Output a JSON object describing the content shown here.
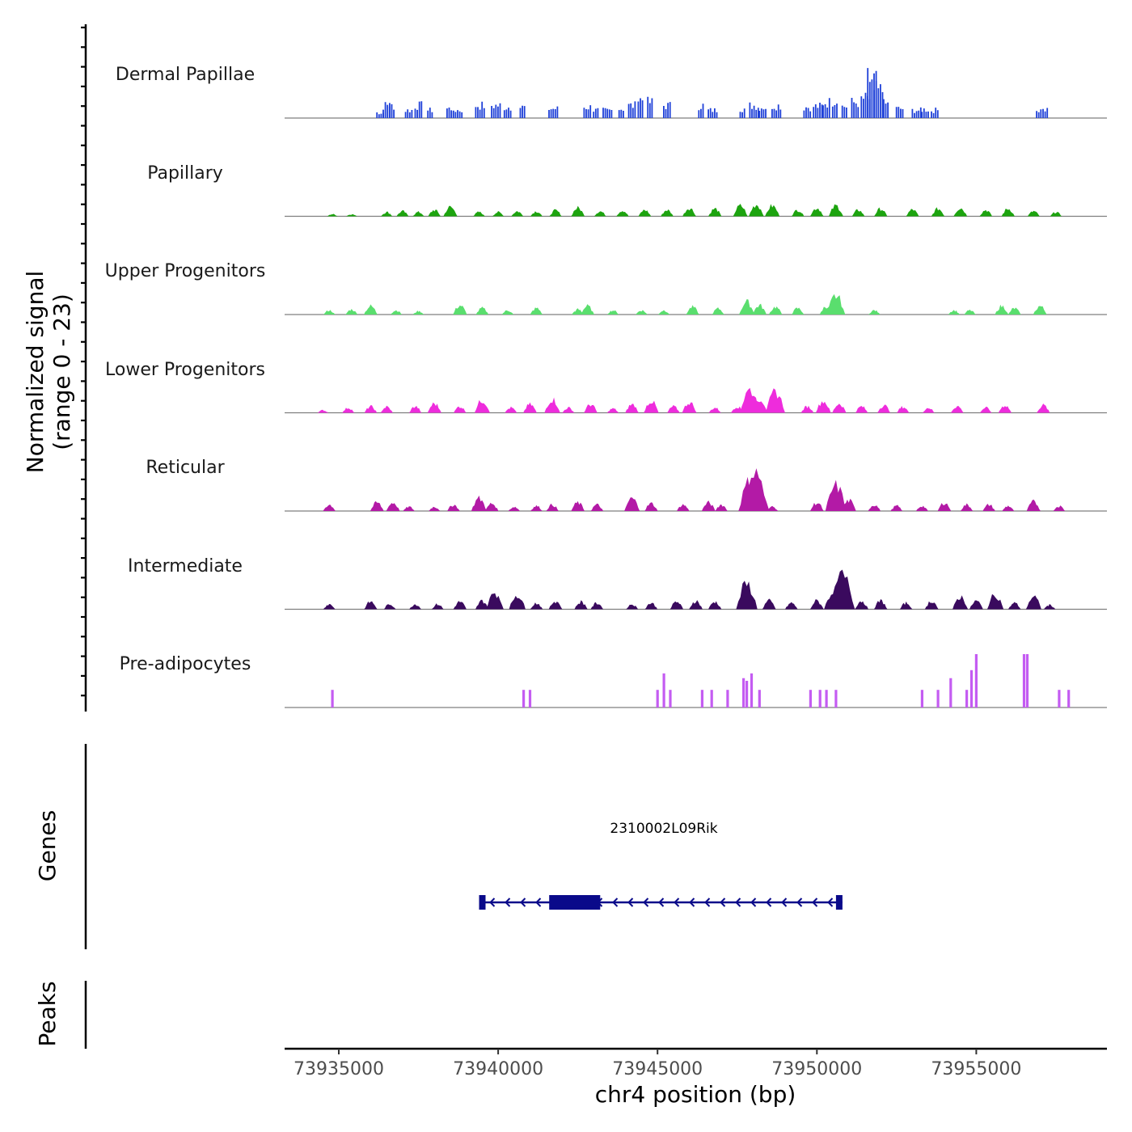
{
  "chart_data": {
    "type": "area",
    "title": "",
    "xlabel": "chr4 position (bp)",
    "ylabel_line1": "Normalized signal",
    "ylabel_line2": "(range 0 - 23)",
    "ylim": [
      0,
      23
    ],
    "xlim": [
      73933300,
      73959100
    ],
    "x_ticks": [
      73935000,
      73940000,
      73945000,
      73950000,
      73955000
    ],
    "x_tick_labels": [
      "73935000",
      "73940000",
      "73945000",
      "73950000",
      "73955000"
    ],
    "genes_label": "Genes",
    "peaks_label": "Peaks",
    "series": [
      {
        "name": "Dermal Papillae",
        "color": "#1e40d8",
        "style": "bars",
        "peaks": [
          [
            73936300,
            0.14
          ],
          [
            73936500,
            0.32
          ],
          [
            73936700,
            0.32
          ],
          [
            73937200,
            0.2
          ],
          [
            73937500,
            0.32
          ],
          [
            73937900,
            0.2
          ],
          [
            73938500,
            0.24
          ],
          [
            73938700,
            0.2
          ],
          [
            73939400,
            0.32
          ],
          [
            73939900,
            0.32
          ],
          [
            73940300,
            0.28
          ],
          [
            73940800,
            0.28
          ],
          [
            73941700,
            0.24
          ],
          [
            73942800,
            0.28
          ],
          [
            73943100,
            0.2
          ],
          [
            73943400,
            0.2
          ],
          [
            73943900,
            0.24
          ],
          [
            73944200,
            0.32
          ],
          [
            73944500,
            0.48
          ],
          [
            73944800,
            0.4
          ],
          [
            73945300,
            0.32
          ],
          [
            73946400,
            0.32
          ],
          [
            73946700,
            0.2
          ],
          [
            73947700,
            0.24
          ],
          [
            73948000,
            0.32
          ],
          [
            73948300,
            0.28
          ],
          [
            73948700,
            0.32
          ],
          [
            73949700,
            0.28
          ],
          [
            73950000,
            0.3
          ],
          [
            73950300,
            0.4
          ],
          [
            73950600,
            0.44
          ],
          [
            73950900,
            0.3
          ],
          [
            73951200,
            0.4
          ],
          [
            73951500,
            0.5
          ],
          [
            73951700,
            1.0
          ],
          [
            73951900,
            0.7
          ],
          [
            73952200,
            0.36
          ],
          [
            73952600,
            0.24
          ],
          [
            73953100,
            0.2
          ],
          [
            73953400,
            0.22
          ],
          [
            73953700,
            0.2
          ],
          [
            73957000,
            0.2
          ],
          [
            73957200,
            0.2
          ]
        ]
      },
      {
        "name": "Papillary",
        "color": "#1da40f",
        "style": "area",
        "peaks": [
          [
            73934800,
            0.05
          ],
          [
            73935400,
            0.05
          ],
          [
            73936500,
            0.1
          ],
          [
            73937000,
            0.12
          ],
          [
            73937500,
            0.1
          ],
          [
            73938000,
            0.15
          ],
          [
            73938500,
            0.22
          ],
          [
            73939400,
            0.1
          ],
          [
            73940000,
            0.1
          ],
          [
            73940600,
            0.12
          ],
          [
            73941200,
            0.12
          ],
          [
            73941800,
            0.14
          ],
          [
            73942500,
            0.2
          ],
          [
            73943200,
            0.12
          ],
          [
            73943900,
            0.14
          ],
          [
            73944600,
            0.15
          ],
          [
            73945300,
            0.15
          ],
          [
            73946000,
            0.2
          ],
          [
            73946800,
            0.18
          ],
          [
            73947600,
            0.25
          ],
          [
            73948100,
            0.28
          ],
          [
            73948600,
            0.25
          ],
          [
            73949400,
            0.15
          ],
          [
            73950000,
            0.2
          ],
          [
            73950600,
            0.25
          ],
          [
            73951300,
            0.15
          ],
          [
            73952000,
            0.18
          ],
          [
            73953000,
            0.16
          ],
          [
            73953800,
            0.18
          ],
          [
            73954500,
            0.2
          ],
          [
            73955300,
            0.15
          ],
          [
            73956000,
            0.18
          ],
          [
            73956800,
            0.12
          ],
          [
            73957500,
            0.1
          ]
        ]
      },
      {
        "name": "Upper Progenitors",
        "color": "#5ade6e",
        "style": "area",
        "peaks": [
          [
            73934700,
            0.1
          ],
          [
            73935400,
            0.12
          ],
          [
            73936000,
            0.2
          ],
          [
            73936800,
            0.1
          ],
          [
            73937500,
            0.08
          ],
          [
            73938800,
            0.22
          ],
          [
            73939500,
            0.15
          ],
          [
            73940300,
            0.1
          ],
          [
            73941200,
            0.15
          ],
          [
            73942500,
            0.12
          ],
          [
            73942800,
            0.2
          ],
          [
            73943600,
            0.1
          ],
          [
            73944500,
            0.1
          ],
          [
            73945200,
            0.1
          ],
          [
            73946100,
            0.18
          ],
          [
            73946900,
            0.14
          ],
          [
            73947800,
            0.3
          ],
          [
            73948200,
            0.22
          ],
          [
            73948700,
            0.18
          ],
          [
            73949400,
            0.15
          ],
          [
            73950300,
            0.2
          ],
          [
            73950600,
            0.45
          ],
          [
            73951800,
            0.1
          ],
          [
            73954300,
            0.1
          ],
          [
            73954800,
            0.1
          ],
          [
            73955800,
            0.2
          ],
          [
            73956200,
            0.15
          ],
          [
            73957000,
            0.2
          ]
        ]
      },
      {
        "name": "Lower Progenitors",
        "color": "#ee2cdc",
        "style": "area",
        "peaks": [
          [
            73934500,
            0.06
          ],
          [
            73935300,
            0.12
          ],
          [
            73936000,
            0.15
          ],
          [
            73936500,
            0.14
          ],
          [
            73937400,
            0.15
          ],
          [
            73938000,
            0.22
          ],
          [
            73938800,
            0.15
          ],
          [
            73939500,
            0.3
          ],
          [
            73940400,
            0.12
          ],
          [
            73941000,
            0.2
          ],
          [
            73941700,
            0.32
          ],
          [
            73942200,
            0.12
          ],
          [
            73942900,
            0.2
          ],
          [
            73943600,
            0.1
          ],
          [
            73944200,
            0.2
          ],
          [
            73944800,
            0.28
          ],
          [
            73945500,
            0.15
          ],
          [
            73946000,
            0.25
          ],
          [
            73946800,
            0.12
          ],
          [
            73947500,
            0.15
          ],
          [
            73947900,
            0.55
          ],
          [
            73948200,
            0.35
          ],
          [
            73948700,
            0.5
          ],
          [
            73949700,
            0.15
          ],
          [
            73950200,
            0.28
          ],
          [
            73950700,
            0.22
          ],
          [
            73951400,
            0.15
          ],
          [
            73952100,
            0.18
          ],
          [
            73952700,
            0.14
          ],
          [
            73953500,
            0.12
          ],
          [
            73954400,
            0.16
          ],
          [
            73955300,
            0.12
          ],
          [
            73955900,
            0.18
          ],
          [
            73957100,
            0.18
          ]
        ]
      },
      {
        "name": "Reticular",
        "color": "#b31aa6",
        "style": "area",
        "peaks": [
          [
            73934700,
            0.15
          ],
          [
            73936200,
            0.2
          ],
          [
            73936700,
            0.2
          ],
          [
            73937200,
            0.1
          ],
          [
            73938000,
            0.1
          ],
          [
            73938600,
            0.15
          ],
          [
            73939400,
            0.3
          ],
          [
            73939800,
            0.18
          ],
          [
            73940500,
            0.1
          ],
          [
            73941200,
            0.12
          ],
          [
            73941700,
            0.15
          ],
          [
            73942500,
            0.2
          ],
          [
            73943100,
            0.15
          ],
          [
            73944200,
            0.3
          ],
          [
            73944800,
            0.18
          ],
          [
            73945800,
            0.15
          ],
          [
            73946600,
            0.2
          ],
          [
            73947000,
            0.15
          ],
          [
            73947900,
            0.7
          ],
          [
            73948100,
            0.85
          ],
          [
            73948600,
            0.1
          ],
          [
            73950000,
            0.2
          ],
          [
            73950600,
            0.6
          ],
          [
            73951000,
            0.25
          ],
          [
            73951800,
            0.15
          ],
          [
            73952500,
            0.12
          ],
          [
            73953300,
            0.12
          ],
          [
            73954000,
            0.2
          ],
          [
            73954700,
            0.15
          ],
          [
            73955400,
            0.15
          ],
          [
            73956000,
            0.12
          ],
          [
            73956800,
            0.22
          ],
          [
            73957600,
            0.12
          ]
        ]
      },
      {
        "name": "Intermediate",
        "color": "#3a0a5e",
        "style": "area",
        "peaks": [
          [
            73934700,
            0.12
          ],
          [
            73936000,
            0.18
          ],
          [
            73936600,
            0.12
          ],
          [
            73937400,
            0.12
          ],
          [
            73938100,
            0.12
          ],
          [
            73938800,
            0.18
          ],
          [
            73939500,
            0.2
          ],
          [
            73939900,
            0.4
          ],
          [
            73940600,
            0.35
          ],
          [
            73941200,
            0.15
          ],
          [
            73941800,
            0.2
          ],
          [
            73942600,
            0.18
          ],
          [
            73943100,
            0.15
          ],
          [
            73944200,
            0.12
          ],
          [
            73944800,
            0.15
          ],
          [
            73945600,
            0.18
          ],
          [
            73946200,
            0.2
          ],
          [
            73946800,
            0.18
          ],
          [
            73947800,
            0.6
          ],
          [
            73948500,
            0.2
          ],
          [
            73949200,
            0.15
          ],
          [
            73950000,
            0.2
          ],
          [
            73950500,
            0.4
          ],
          [
            73950800,
            0.8
          ],
          [
            73951400,
            0.2
          ],
          [
            73952000,
            0.2
          ],
          [
            73952800,
            0.15
          ],
          [
            73953600,
            0.2
          ],
          [
            73954500,
            0.3
          ],
          [
            73955000,
            0.2
          ],
          [
            73955600,
            0.35
          ],
          [
            73956200,
            0.15
          ],
          [
            73956800,
            0.3
          ],
          [
            73957300,
            0.1
          ]
        ]
      },
      {
        "name": "Pre-adipocytes",
        "color": "#c45cf2",
        "style": "spikes",
        "peaks": [
          [
            73934800,
            0.33
          ],
          [
            73940800,
            0.33
          ],
          [
            73941000,
            0.33
          ],
          [
            73945000,
            0.33
          ],
          [
            73945200,
            0.64
          ],
          [
            73945400,
            0.33
          ],
          [
            73946400,
            0.33
          ],
          [
            73946700,
            0.33
          ],
          [
            73947200,
            0.33
          ],
          [
            73947700,
            0.55
          ],
          [
            73947800,
            0.5
          ],
          [
            73947950,
            0.64
          ],
          [
            73948200,
            0.33
          ],
          [
            73949800,
            0.33
          ],
          [
            73950100,
            0.33
          ],
          [
            73950300,
            0.33
          ],
          [
            73950600,
            0.33
          ],
          [
            73953300,
            0.33
          ],
          [
            73953800,
            0.33
          ],
          [
            73954200,
            0.55
          ],
          [
            73954700,
            0.33
          ],
          [
            73954850,
            0.7
          ],
          [
            73955000,
            1.0
          ],
          [
            73956500,
            1.0
          ],
          [
            73956600,
            1.0
          ],
          [
            73957600,
            0.33
          ],
          [
            73957900,
            0.33
          ]
        ]
      }
    ],
    "gene": {
      "name": "2310002L09Rik",
      "strand": "-",
      "start": 73939400,
      "end": 73950800,
      "exons": [
        [
          73939400,
          73939600
        ],
        [
          73941600,
          73943200
        ],
        [
          73950600,
          73950800
        ]
      ]
    }
  }
}
